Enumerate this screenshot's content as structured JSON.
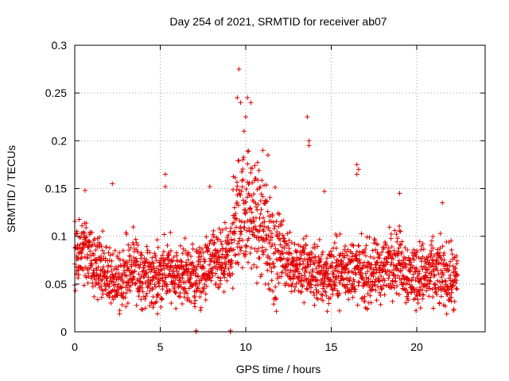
{
  "chart_data": {
    "type": "scatter",
    "title": "Day 254 of 2021, SRMTID for receiver ab07",
    "xlabel": "GPS time / hours",
    "ylabel": "SRMTID / TECUs",
    "xlim": [
      0,
      24
    ],
    "ylim": [
      0,
      0.3
    ],
    "grid": true,
    "marker": "+",
    "series_color": "#e00000",
    "x_ticks": [
      {
        "v": 0,
        "label": "0"
      },
      {
        "v": 5,
        "label": "5"
      },
      {
        "v": 10,
        "label": "10"
      },
      {
        "v": 15,
        "label": "15"
      },
      {
        "v": 20,
        "label": "20"
      }
    ],
    "y_ticks": [
      {
        "v": 0,
        "label": "0"
      },
      {
        "v": 0.05,
        "label": "0.05"
      },
      {
        "v": 0.1,
        "label": "0.1"
      },
      {
        "v": 0.15,
        "label": "0.15"
      },
      {
        "v": 0.2,
        "label": "0.2"
      },
      {
        "v": 0.25,
        "label": "0.25"
      },
      {
        "v": 0.3,
        "label": "0.3"
      }
    ],
    "trend_profile": [
      [
        0.0,
        0.08
      ],
      [
        0.5,
        0.085
      ],
      [
        1.0,
        0.075
      ],
      [
        1.5,
        0.065
      ],
      [
        2.0,
        0.055
      ],
      [
        2.5,
        0.055
      ],
      [
        3.0,
        0.06
      ],
      [
        3.5,
        0.065
      ],
      [
        4.0,
        0.06
      ],
      [
        4.5,
        0.055
      ],
      [
        5.0,
        0.06
      ],
      [
        5.5,
        0.065
      ],
      [
        6.0,
        0.06
      ],
      [
        6.5,
        0.06
      ],
      [
        7.0,
        0.055
      ],
      [
        7.5,
        0.06
      ],
      [
        8.0,
        0.07
      ],
      [
        8.5,
        0.07
      ],
      [
        9.0,
        0.075
      ],
      [
        9.5,
        0.12
      ],
      [
        10.0,
        0.13
      ],
      [
        10.5,
        0.12
      ],
      [
        11.0,
        0.11
      ],
      [
        11.5,
        0.095
      ],
      [
        12.0,
        0.085
      ],
      [
        12.5,
        0.075
      ],
      [
        13.0,
        0.07
      ],
      [
        13.5,
        0.065
      ],
      [
        14.0,
        0.06
      ],
      [
        14.5,
        0.06
      ],
      [
        15.0,
        0.06
      ],
      [
        15.5,
        0.065
      ],
      [
        16.0,
        0.065
      ],
      [
        16.5,
        0.065
      ],
      [
        17.0,
        0.06
      ],
      [
        17.5,
        0.06
      ],
      [
        18.0,
        0.065
      ],
      [
        18.5,
        0.075
      ],
      [
        19.0,
        0.075
      ],
      [
        19.5,
        0.06
      ],
      [
        20.0,
        0.06
      ],
      [
        20.5,
        0.06
      ],
      [
        21.0,
        0.06
      ],
      [
        21.5,
        0.06
      ],
      [
        22.0,
        0.055
      ],
      [
        22.4,
        0.05
      ]
    ],
    "x_range_of_data": [
      0.0,
      22.4
    ],
    "point_count_approx": 2200,
    "notable_points": [
      {
        "x": 9.6,
        "y": 0.275
      },
      {
        "x": 9.5,
        "y": 0.245
      },
      {
        "x": 9.7,
        "y": 0.24
      },
      {
        "x": 10.1,
        "y": 0.245
      },
      {
        "x": 10.3,
        "y": 0.24
      },
      {
        "x": 10.0,
        "y": 0.225
      },
      {
        "x": 9.9,
        "y": 0.21
      },
      {
        "x": 13.6,
        "y": 0.225
      },
      {
        "x": 13.7,
        "y": 0.2
      },
      {
        "x": 13.7,
        "y": 0.195
      },
      {
        "x": 16.5,
        "y": 0.175
      },
      {
        "x": 16.6,
        "y": 0.17
      },
      {
        "x": 16.5,
        "y": 0.165
      },
      {
        "x": 5.3,
        "y": 0.165
      },
      {
        "x": 5.3,
        "y": 0.152
      },
      {
        "x": 2.2,
        "y": 0.155
      },
      {
        "x": 0.6,
        "y": 0.148
      },
      {
        "x": 21.5,
        "y": 0.135
      },
      {
        "x": 19.0,
        "y": 0.145
      },
      {
        "x": 7.9,
        "y": 0.152
      },
      {
        "x": 11.3,
        "y": 0.185
      },
      {
        "x": 11.0,
        "y": 0.19
      },
      {
        "x": 14.6,
        "y": 0.147
      }
    ],
    "near_zero_points": [
      {
        "x": 7.1,
        "y": 0.0
      },
      {
        "x": 7.1,
        "y": 0.001
      },
      {
        "x": 9.1,
        "y": 0.0
      },
      {
        "x": 9.1,
        "y": 0.001
      }
    ]
  }
}
